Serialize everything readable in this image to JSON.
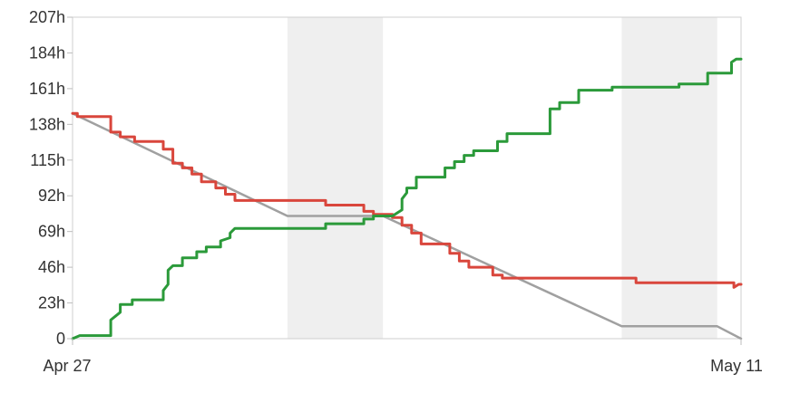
{
  "chart_data": {
    "type": "line",
    "x_axis": {
      "start_label": "Apr 27",
      "end_label": "May 11",
      "range_days": [
        0,
        14
      ]
    },
    "y_axis": {
      "ticks": [
        {
          "value": 0,
          "label": "0"
        },
        {
          "value": 23,
          "label": "23h"
        },
        {
          "value": 46,
          "label": "46h"
        },
        {
          "value": 69,
          "label": "69h"
        },
        {
          "value": 92,
          "label": "92h"
        },
        {
          "value": 115,
          "label": "115h"
        },
        {
          "value": 138,
          "label": "138h"
        },
        {
          "value": 161,
          "label": "161h"
        },
        {
          "value": 184,
          "label": "184h"
        },
        {
          "value": 207,
          "label": "207h"
        }
      ],
      "ylim": [
        0,
        207
      ]
    },
    "weekend_bands": [
      [
        4.5,
        6.5
      ],
      [
        11.5,
        13.5
      ]
    ],
    "series": [
      {
        "role": "ideal",
        "color": "#a0a0a0",
        "points": [
          [
            0,
            145
          ],
          [
            4.5,
            79
          ],
          [
            6.5,
            79
          ],
          [
            11.5,
            8
          ],
          [
            13.5,
            8
          ],
          [
            14,
            0
          ]
        ]
      },
      {
        "role": "remaining",
        "color": "#d9463c",
        "points": [
          [
            0,
            145
          ],
          [
            0.1,
            145
          ],
          [
            0.1,
            143
          ],
          [
            0.8,
            143
          ],
          [
            0.8,
            133
          ],
          [
            1.0,
            133
          ],
          [
            1.0,
            130
          ],
          [
            1.3,
            130
          ],
          [
            1.3,
            127
          ],
          [
            1.9,
            127
          ],
          [
            1.9,
            122
          ],
          [
            2.1,
            122
          ],
          [
            2.1,
            113
          ],
          [
            2.3,
            113
          ],
          [
            2.3,
            110
          ],
          [
            2.5,
            110
          ],
          [
            2.5,
            106
          ],
          [
            2.7,
            106
          ],
          [
            2.7,
            101
          ],
          [
            3.0,
            101
          ],
          [
            3.0,
            97
          ],
          [
            3.2,
            97
          ],
          [
            3.2,
            93
          ],
          [
            3.4,
            93
          ],
          [
            3.4,
            89
          ],
          [
            5.3,
            89
          ],
          [
            5.3,
            86
          ],
          [
            6.1,
            86
          ],
          [
            6.1,
            82
          ],
          [
            6.3,
            82
          ],
          [
            6.3,
            80
          ],
          [
            6.7,
            80
          ],
          [
            6.7,
            78
          ],
          [
            6.9,
            78
          ],
          [
            6.9,
            73
          ],
          [
            7.1,
            73
          ],
          [
            7.1,
            68
          ],
          [
            7.3,
            68
          ],
          [
            7.3,
            61
          ],
          [
            7.9,
            61
          ],
          [
            7.9,
            55
          ],
          [
            8.1,
            55
          ],
          [
            8.1,
            50
          ],
          [
            8.3,
            50
          ],
          [
            8.3,
            46
          ],
          [
            8.8,
            46
          ],
          [
            8.8,
            41
          ],
          [
            9.0,
            41
          ],
          [
            9.0,
            39
          ],
          [
            11.8,
            39
          ],
          [
            11.8,
            36
          ],
          [
            13.85,
            36
          ],
          [
            13.85,
            33
          ],
          [
            13.95,
            35
          ],
          [
            14.0,
            35
          ]
        ]
      },
      {
        "role": "completed",
        "color": "#2b9a3a",
        "points": [
          [
            0,
            0
          ],
          [
            0.15,
            2
          ],
          [
            0.8,
            2
          ],
          [
            0.8,
            12
          ],
          [
            1.0,
            17
          ],
          [
            1.0,
            22
          ],
          [
            1.25,
            22
          ],
          [
            1.25,
            25
          ],
          [
            1.9,
            25
          ],
          [
            1.9,
            31
          ],
          [
            2.0,
            35
          ],
          [
            2.0,
            44
          ],
          [
            2.1,
            47
          ],
          [
            2.3,
            47
          ],
          [
            2.3,
            52
          ],
          [
            2.6,
            52
          ],
          [
            2.6,
            56
          ],
          [
            2.8,
            56
          ],
          [
            2.8,
            59
          ],
          [
            3.1,
            59
          ],
          [
            3.1,
            63
          ],
          [
            3.3,
            65
          ],
          [
            3.3,
            68
          ],
          [
            3.4,
            71
          ],
          [
            5.3,
            71
          ],
          [
            5.3,
            74
          ],
          [
            6.1,
            74
          ],
          [
            6.1,
            77
          ],
          [
            6.3,
            77
          ],
          [
            6.3,
            79
          ],
          [
            6.7,
            79
          ],
          [
            6.9,
            83
          ],
          [
            6.9,
            90
          ],
          [
            7.0,
            94
          ],
          [
            7.0,
            97
          ],
          [
            7.2,
            97
          ],
          [
            7.2,
            104
          ],
          [
            7.8,
            104
          ],
          [
            7.8,
            110
          ],
          [
            8.0,
            110
          ],
          [
            8.0,
            114
          ],
          [
            8.2,
            114
          ],
          [
            8.2,
            118
          ],
          [
            8.4,
            118
          ],
          [
            8.4,
            121
          ],
          [
            8.9,
            121
          ],
          [
            8.9,
            127
          ],
          [
            9.1,
            127
          ],
          [
            9.1,
            132
          ],
          [
            10.0,
            132
          ],
          [
            10.0,
            148
          ],
          [
            10.2,
            148
          ],
          [
            10.2,
            152
          ],
          [
            10.6,
            152
          ],
          [
            10.6,
            160
          ],
          [
            11.3,
            160
          ],
          [
            11.3,
            162
          ],
          [
            12.7,
            162
          ],
          [
            12.7,
            164
          ],
          [
            13.3,
            164
          ],
          [
            13.3,
            171
          ],
          [
            13.8,
            171
          ],
          [
            13.8,
            178
          ],
          [
            13.9,
            180
          ],
          [
            14.0,
            180
          ]
        ]
      }
    ]
  }
}
